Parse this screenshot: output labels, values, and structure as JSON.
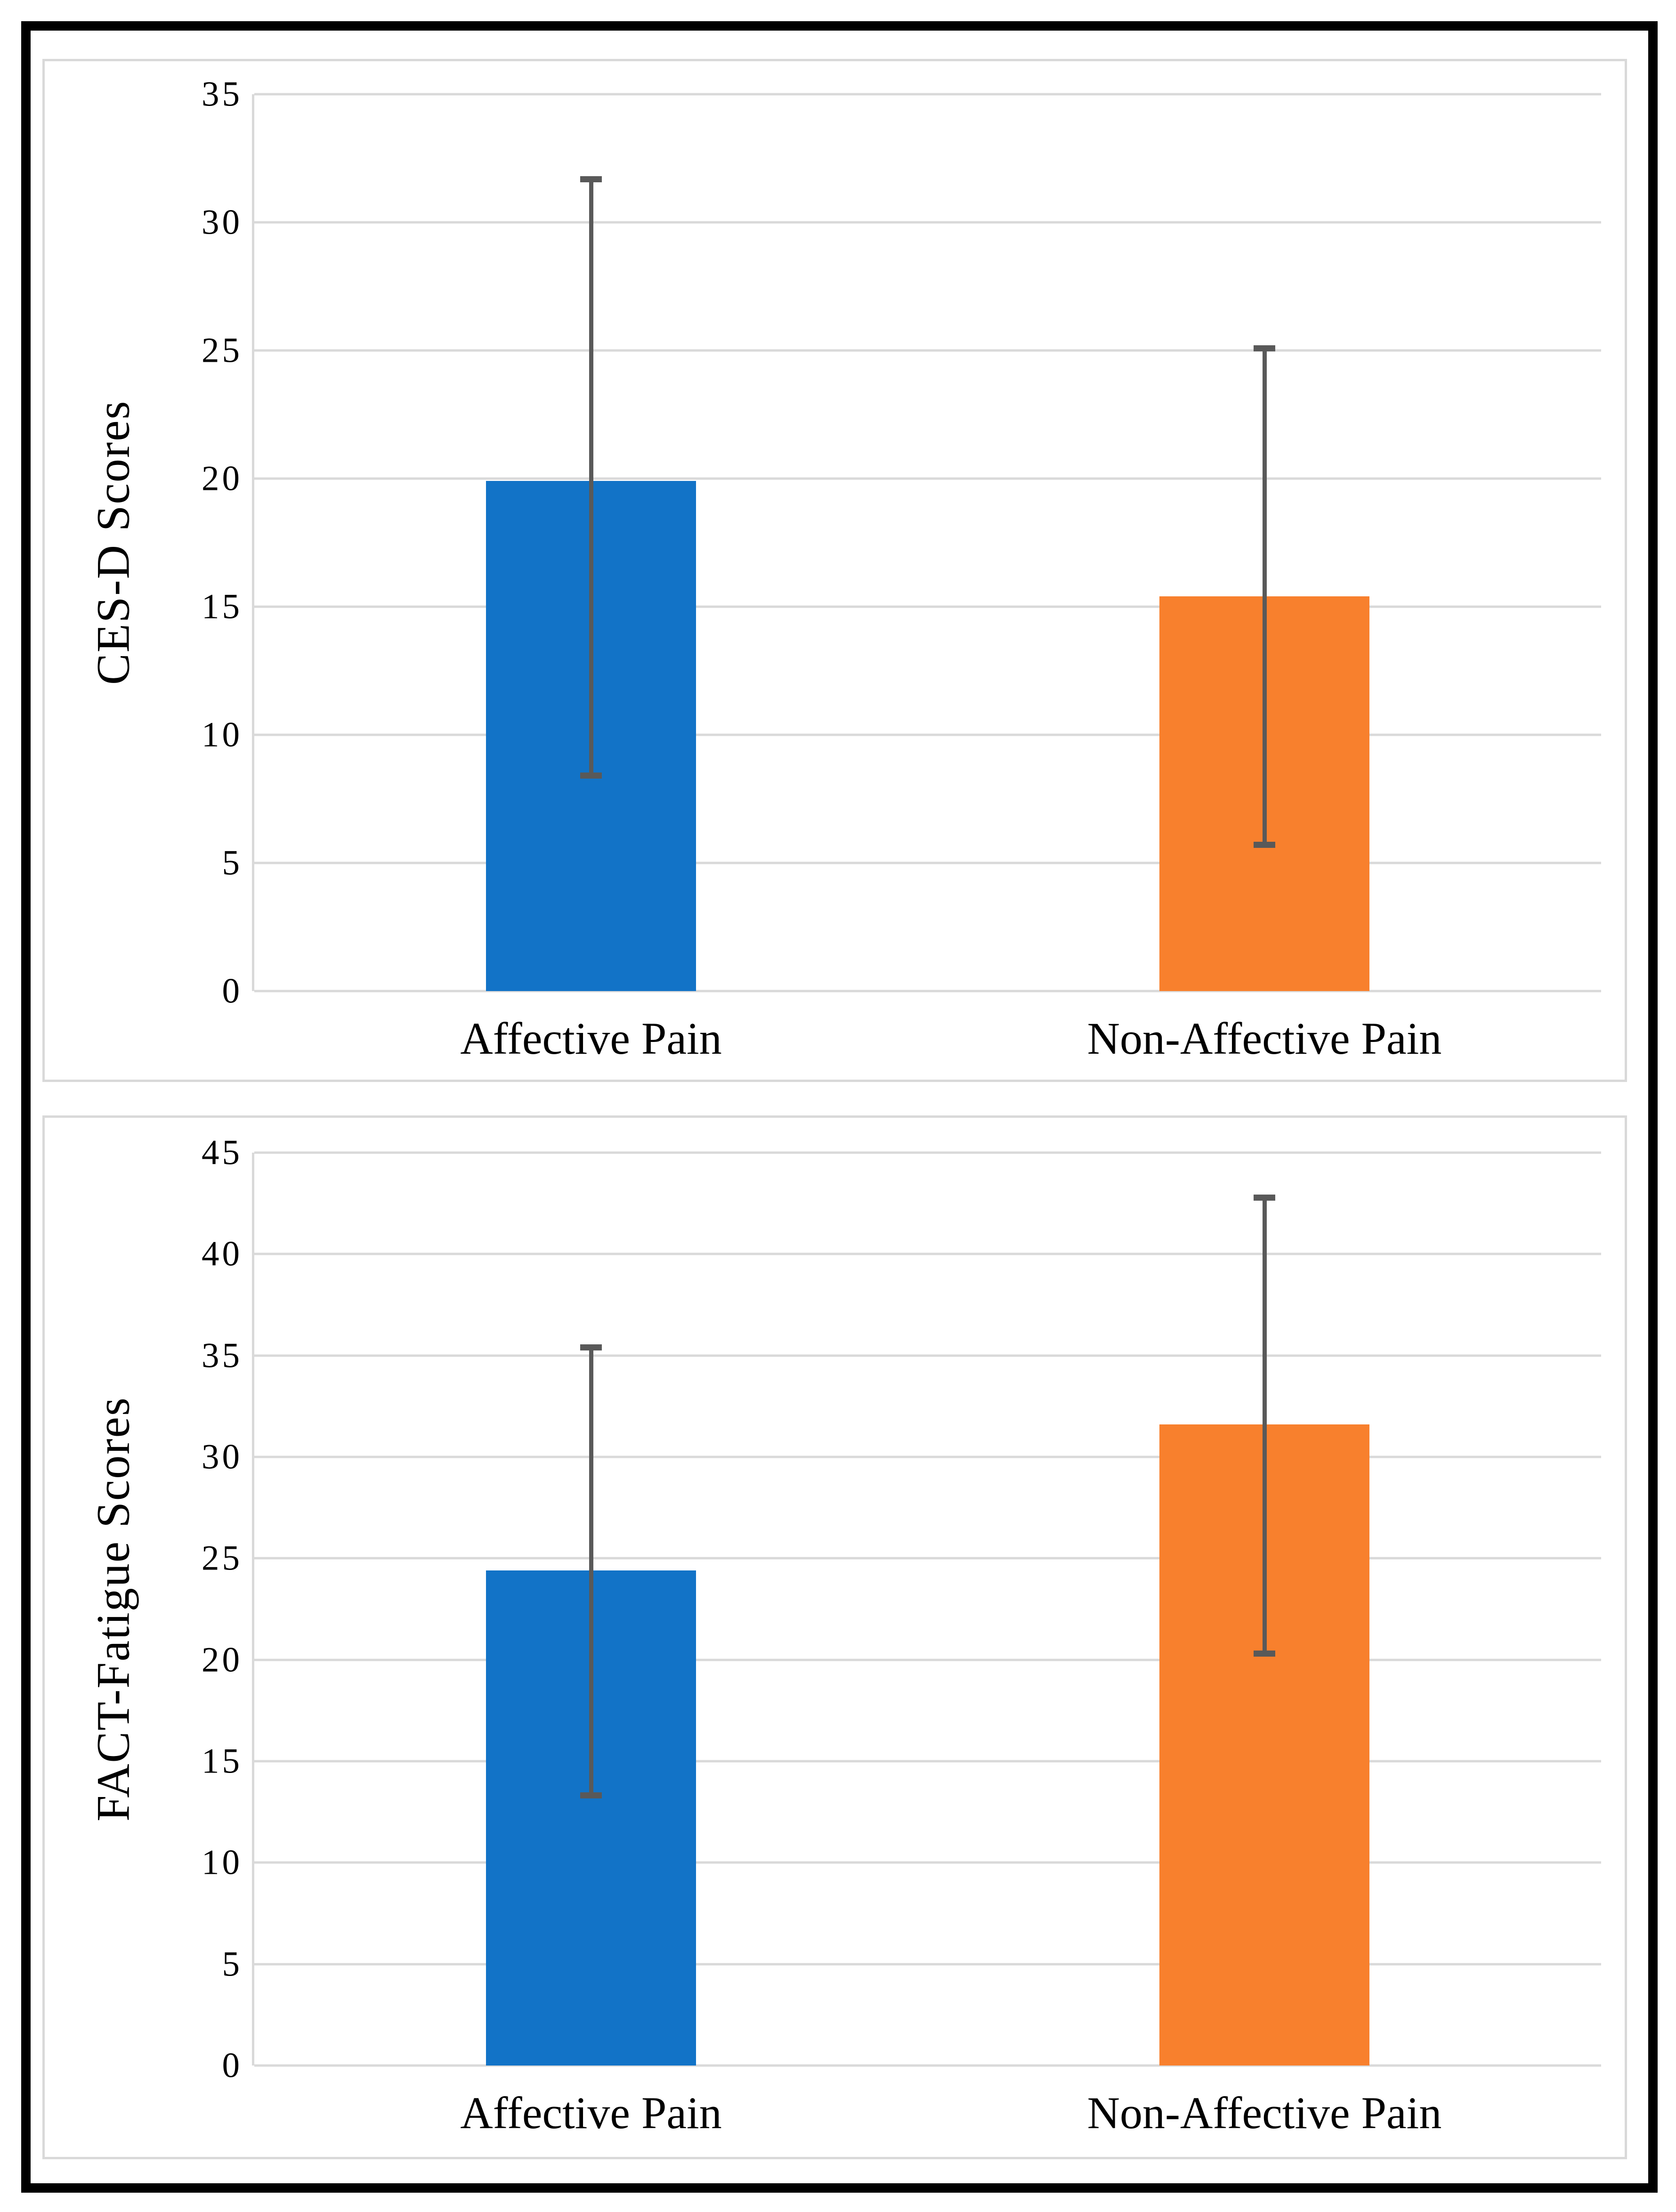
{
  "figure": {
    "background_color": "#ffffff",
    "outer_border_color": "#000000",
    "panel_border_color": "#d9d9d9",
    "gridline_color": "#d9d9d9",
    "error_bar_color": "#595959",
    "text_color": "#000000"
  },
  "chart_data": [
    {
      "type": "bar",
      "title": "",
      "xlabel": "",
      "ylabel": "CES-D Scores",
      "categories": [
        "Affective Pain",
        "Non-Affective Pain"
      ],
      "values": [
        19.9,
        15.4
      ],
      "error_low": [
        8.4,
        5.7
      ],
      "error_high": [
        31.7,
        25.1
      ],
      "bar_colors": [
        "#1273c7",
        "#f8802d"
      ],
      "ylim": [
        0,
        35
      ],
      "yticks": [
        0,
        5,
        10,
        15,
        20,
        25,
        30,
        35
      ],
      "grid": true,
      "legend": "none"
    },
    {
      "type": "bar",
      "title": "",
      "xlabel": "",
      "ylabel": "FACT-Fatigue Scores",
      "categories": [
        "Affective Pain",
        "Non-Affective Pain"
      ],
      "values": [
        24.4,
        31.6
      ],
      "error_low": [
        13.3,
        20.3
      ],
      "error_high": [
        35.4,
        42.8
      ],
      "bar_colors": [
        "#1273c7",
        "#f8802d"
      ],
      "ylim": [
        0,
        45
      ],
      "yticks": [
        0,
        5,
        10,
        15,
        20,
        25,
        30,
        35,
        40,
        45
      ],
      "grid": true,
      "legend": "none"
    }
  ]
}
